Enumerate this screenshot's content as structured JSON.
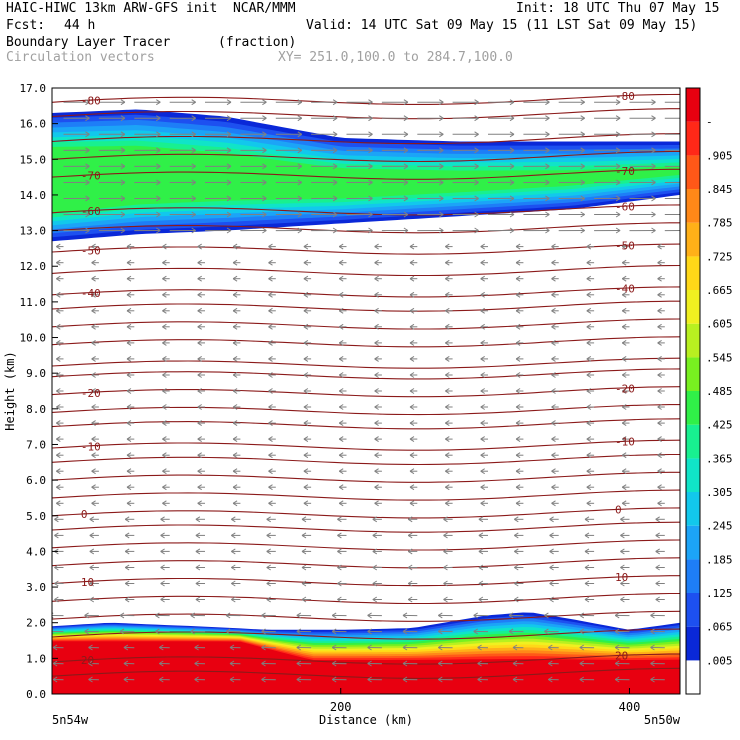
{
  "header": {
    "title": "HAIC-HIWC 13km ARW-GFS init  NCAR/MMM",
    "init": "Init: 18 UTC Thu 07 May 15",
    "fcst_label": "Fcst:",
    "fcst_value": "44 h",
    "valid": "Valid: 14 UTC Sat 09 May 15 (11 LST Sat 09 May 15)",
    "field_name": "Boundary Layer Tracer",
    "field_units": "(fraction)",
    "vector_label": "Circulation vectors",
    "xy_range": "XY= 251.0,100.0 to 284.7,100.0"
  },
  "colors": {
    "contour": "#8b1a1a",
    "vector": "#808080",
    "scale": [
      "#ffffff",
      "#0a28d8",
      "#1d50f0",
      "#1e7ef7",
      "#1ca4f7",
      "#12c8ec",
      "#10e4c8",
      "#18f090",
      "#30f048",
      "#78f020",
      "#b8f020",
      "#f0f020",
      "#ffd818",
      "#ffb018",
      "#ff8818",
      "#ff5818",
      "#ff2818",
      "#e80010"
    ]
  },
  "chart_data": {
    "type": "cross-section",
    "title": "Boundary Layer Tracer",
    "units": "(fraction)",
    "xlabel": "Distance (km)",
    "ylabel": "Height (km)",
    "xlim": [
      0,
      435
    ],
    "ylim": [
      0,
      17
    ],
    "x_ticks": [
      200,
      400
    ],
    "x_end_labels": [
      "5n54w",
      "5n50w"
    ],
    "y_ticks": [
      "0.0",
      "1.0",
      "2.0",
      "3.0",
      "4.0",
      "5.0",
      "6.0",
      "7.0",
      "8.0",
      "9.0",
      "10.0",
      "11.0",
      "12.0",
      "13.0",
      "14.0",
      "15.0",
      "16.0",
      "17.0"
    ],
    "colorbar_labels": [
      ".005",
      ".065",
      ".125",
      ".185",
      ".245",
      ".305",
      ".365",
      ".425",
      ".485",
      ".545",
      ".605",
      ".665",
      ".725",
      ".785",
      ".845",
      ".905",
      "-"
    ],
    "temperature_contours": [
      {
        "label": "-80",
        "y": 16.6
      },
      {
        "label": "-70",
        "y": 14.5
      },
      {
        "label": "-60",
        "y": 13.5
      },
      {
        "label": "-50",
        "y": 12.4
      },
      {
        "label": "-40",
        "y": 11.2
      },
      {
        "label": "-20",
        "y": 8.4
      },
      {
        "label": "-10",
        "y": 6.9
      },
      {
        "label": "0",
        "y": 5.0
      },
      {
        "label": "10",
        "y": 3.1
      },
      {
        "label": "20",
        "y": 0.9
      }
    ],
    "unlabeled_contours": [
      16.2,
      15.5,
      15.0,
      13.0,
      11.8,
      10.8,
      10.3,
      9.8,
      9.2,
      8.9,
      7.9,
      7.5,
      6.5,
      6.0,
      5.5,
      4.6,
      4.1,
      3.6,
      2.6,
      2.1,
      1.6,
      0.5
    ],
    "upper_tracer_layer": {
      "top_km": [
        16.3,
        16.4,
        16.2,
        15.6,
        15.5,
        15.5,
        15.5
      ],
      "bottom_km": [
        12.7,
        12.9,
        13.0,
        13.2,
        13.4,
        13.6,
        14.0
      ],
      "x_km": [
        0,
        60,
        120,
        200,
        280,
        360,
        435
      ]
    },
    "boundary_layer_top_km": {
      "x_km": [
        0,
        40,
        100,
        150,
        200,
        250,
        300,
        330,
        360,
        400,
        435
      ],
      "top": [
        1.9,
        2.0,
        1.9,
        1.8,
        1.8,
        1.85,
        2.2,
        2.3,
        2.1,
        1.8,
        2.0
      ]
    }
  }
}
